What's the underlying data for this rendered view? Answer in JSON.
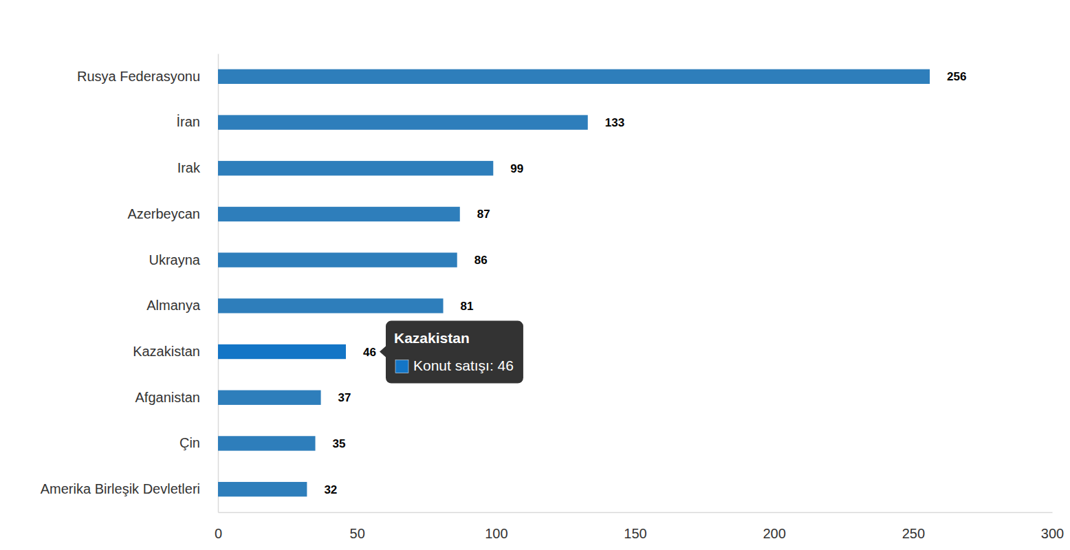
{
  "chart_data": {
    "type": "bar",
    "orientation": "horizontal",
    "categories": [
      "Rusya Federasyonu",
      "İran",
      "Irak",
      "Azerbeycan",
      "Ukrayna",
      "Almanya",
      "Kazakistan",
      "Afganistan",
      "Çin",
      "Amerika Birleşik Devletleri"
    ],
    "values": [
      256,
      133,
      99,
      87,
      86,
      81,
      46,
      37,
      35,
      32
    ],
    "colors": [
      "#2e7ebb",
      "#2e7ebb",
      "#2e7ebb",
      "#2e7ebb",
      "#2e7ebb",
      "#2e7ebb",
      "#1375c6",
      "#2e7ebb",
      "#2e7ebb",
      "#2e7ebb"
    ],
    "xlim": [
      0,
      300
    ],
    "xticks": [
      0,
      50,
      100,
      150,
      200,
      250,
      300
    ],
    "grid": false,
    "data_labels": true,
    "annotations": [
      {
        "title": "Kazakistan",
        "text": "Konut satışı: 46"
      }
    ]
  }
}
